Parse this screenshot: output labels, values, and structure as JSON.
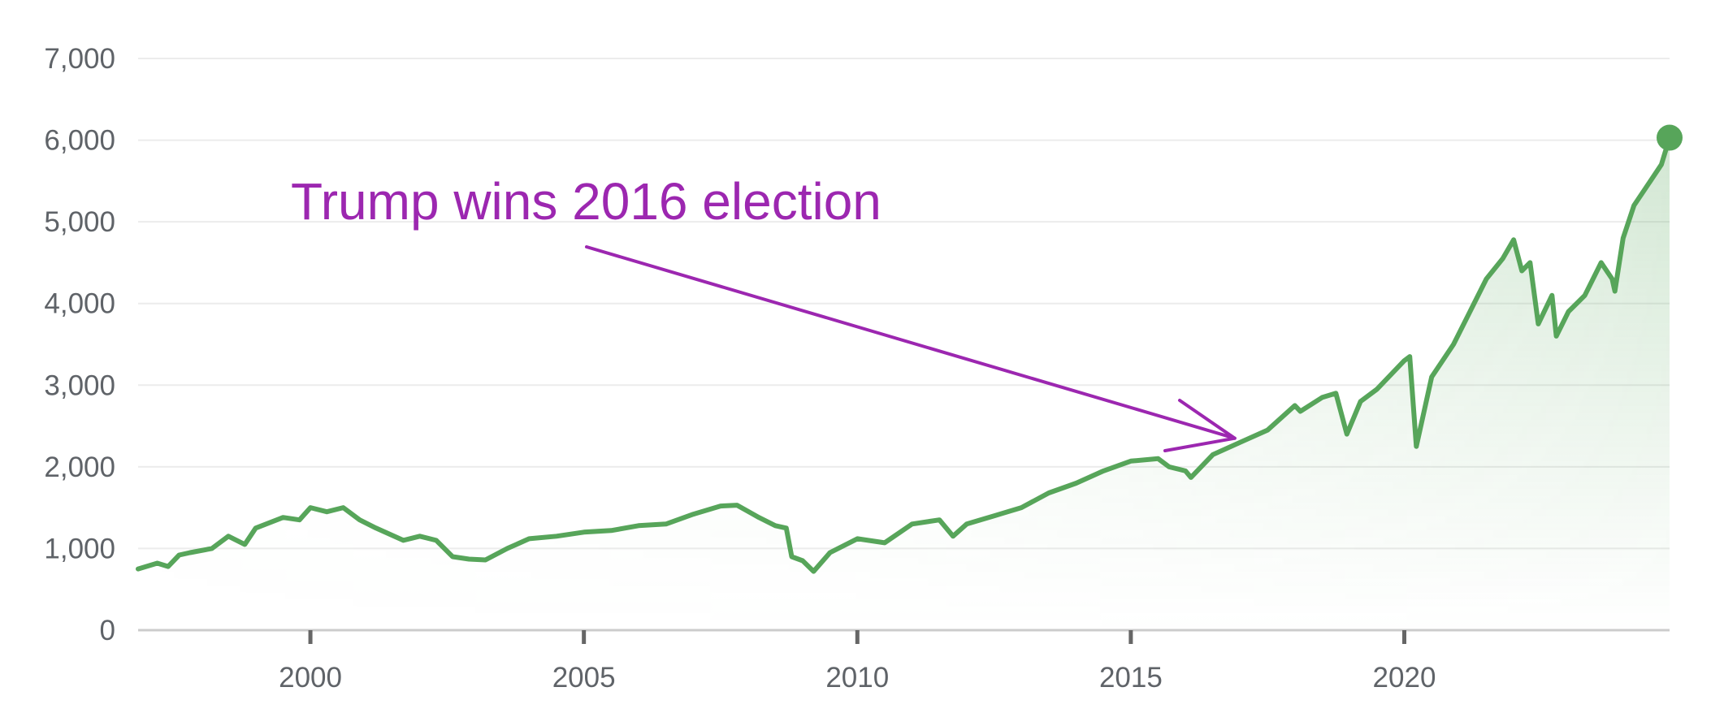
{
  "chart_data": {
    "type": "area",
    "title": "",
    "xlabel": "",
    "ylabel": "",
    "x_ticks": [
      2000,
      2005,
      2010,
      2015,
      2020
    ],
    "y_ticks": [
      0,
      1000,
      2000,
      3000,
      4000,
      5000,
      6000,
      7000
    ],
    "y_tick_labels": [
      "0",
      "1,000",
      "2,000",
      "3,000",
      "4,000",
      "5,000",
      "6,000",
      "7,000"
    ],
    "x_tick_labels": [
      "2000",
      "2005",
      "2010",
      "2015",
      "2020"
    ],
    "xlim": [
      1996.85,
      2024.85
    ],
    "ylim": [
      0,
      7000
    ],
    "grid": true,
    "legend": "none",
    "line_color": "#57a55a",
    "fill_color": "#57a55a",
    "series": [
      {
        "values": [
          [
            1996.85,
            750
          ],
          [
            1997.2,
            820
          ],
          [
            1997.4,
            780
          ],
          [
            1997.6,
            920
          ],
          [
            1997.8,
            950
          ],
          [
            1998.2,
            1000
          ],
          [
            1998.5,
            1150
          ],
          [
            1998.8,
            1050
          ],
          [
            1999.0,
            1250
          ],
          [
            1999.5,
            1380
          ],
          [
            1999.8,
            1350
          ],
          [
            2000.0,
            1500
          ],
          [
            2000.3,
            1450
          ],
          [
            2000.6,
            1500
          ],
          [
            2000.9,
            1350
          ],
          [
            2001.2,
            1250
          ],
          [
            2001.7,
            1100
          ],
          [
            2002.0,
            1150
          ],
          [
            2002.3,
            1100
          ],
          [
            2002.6,
            900
          ],
          [
            2002.9,
            870
          ],
          [
            2003.2,
            860
          ],
          [
            2003.6,
            1000
          ],
          [
            2004.0,
            1120
          ],
          [
            2004.5,
            1150
          ],
          [
            2005.0,
            1200
          ],
          [
            2005.5,
            1220
          ],
          [
            2006.0,
            1280
          ],
          [
            2006.5,
            1300
          ],
          [
            2007.0,
            1420
          ],
          [
            2007.5,
            1520
          ],
          [
            2007.8,
            1530
          ],
          [
            2008.2,
            1380
          ],
          [
            2008.5,
            1280
          ],
          [
            2008.7,
            1250
          ],
          [
            2008.8,
            900
          ],
          [
            2009.0,
            850
          ],
          [
            2009.2,
            720
          ],
          [
            2009.5,
            950
          ],
          [
            2010.0,
            1120
          ],
          [
            2010.5,
            1070
          ],
          [
            2011.0,
            1300
          ],
          [
            2011.5,
            1350
          ],
          [
            2011.75,
            1150
          ],
          [
            2012.0,
            1300
          ],
          [
            2012.5,
            1400
          ],
          [
            2013.0,
            1500
          ],
          [
            2013.5,
            1680
          ],
          [
            2014.0,
            1800
          ],
          [
            2014.5,
            1950
          ],
          [
            2015.0,
            2070
          ],
          [
            2015.5,
            2100
          ],
          [
            2015.7,
            2000
          ],
          [
            2016.0,
            1950
          ],
          [
            2016.1,
            1870
          ],
          [
            2016.5,
            2150
          ],
          [
            2017.0,
            2300
          ],
          [
            2017.5,
            2450
          ],
          [
            2018.0,
            2750
          ],
          [
            2018.1,
            2680
          ],
          [
            2018.5,
            2850
          ],
          [
            2018.75,
            2900
          ],
          [
            2018.95,
            2400
          ],
          [
            2019.2,
            2800
          ],
          [
            2019.5,
            2950
          ],
          [
            2020.0,
            3300
          ],
          [
            2020.1,
            3350
          ],
          [
            2020.22,
            2250
          ],
          [
            2020.5,
            3100
          ],
          [
            2020.9,
            3500
          ],
          [
            2021.2,
            3900
          ],
          [
            2021.5,
            4300
          ],
          [
            2021.8,
            4550
          ],
          [
            2022.0,
            4780
          ],
          [
            2022.15,
            4400
          ],
          [
            2022.3,
            4500
          ],
          [
            2022.45,
            3750
          ],
          [
            2022.7,
            4100
          ],
          [
            2022.78,
            3600
          ],
          [
            2023.0,
            3900
          ],
          [
            2023.3,
            4100
          ],
          [
            2023.6,
            4500
          ],
          [
            2023.8,
            4300
          ],
          [
            2023.85,
            4150
          ],
          [
            2024.0,
            4800
          ],
          [
            2024.2,
            5200
          ],
          [
            2024.5,
            5500
          ],
          [
            2024.7,
            5700
          ],
          [
            2024.85,
            6030
          ]
        ]
      }
    ],
    "last_point": [
      2024.85,
      6030
    ],
    "annotation": {
      "text": "Trump wins 2016 election",
      "color": "#9c27b0",
      "target": [
        2016.9,
        2350
      ]
    }
  }
}
